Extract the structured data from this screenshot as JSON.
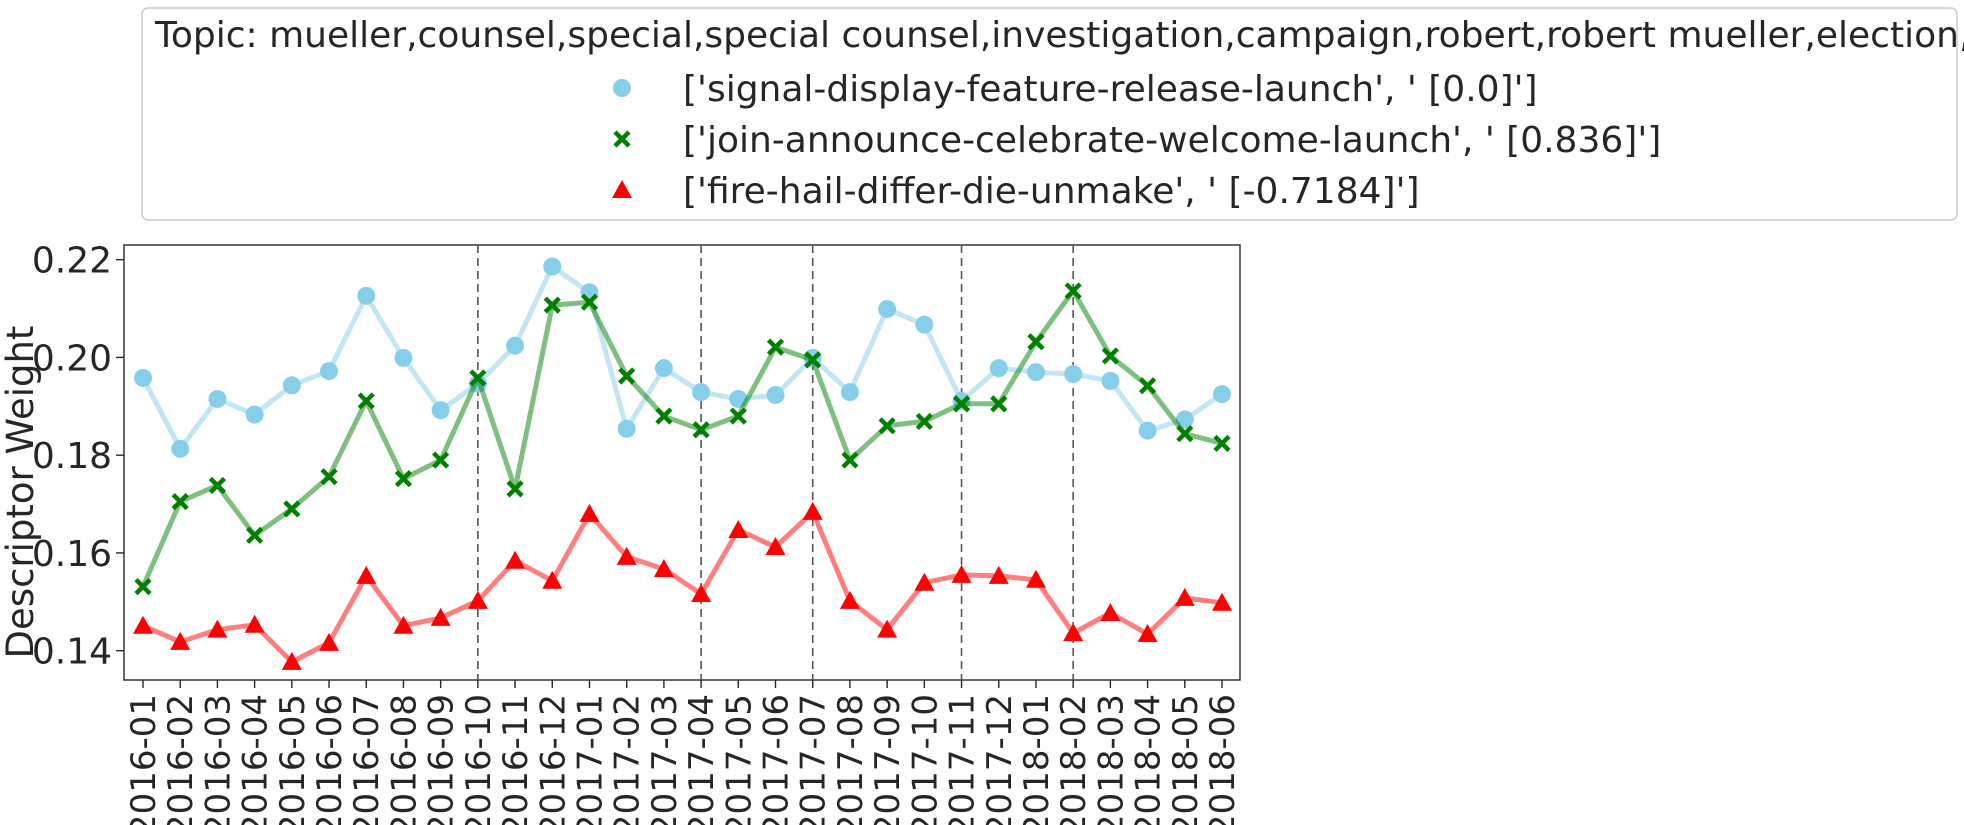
{
  "chart_data": {
    "type": "line",
    "legend": {
      "title": "Topic: mueller,counsel,special,special counsel,investigation,campaign,robert,robert mueller,election,probe",
      "placement": "top"
    },
    "ylabel": "Descriptor Weight",
    "xlabel": "",
    "ylim": [
      0.134,
      0.223
    ],
    "yticks": [
      0.14,
      0.16,
      0.18,
      0.2,
      0.22
    ],
    "ytick_labels": [
      "0.14",
      "0.16",
      "0.18",
      "0.20",
      "0.22"
    ],
    "categories": [
      "2016-01",
      "2016-02",
      "2016-03",
      "2016-04",
      "2016-05",
      "2016-06",
      "2016-07",
      "2016-08",
      "2016-09",
      "2016-10",
      "2016-11",
      "2016-12",
      "2017-01",
      "2017-02",
      "2017-03",
      "2017-04",
      "2017-05",
      "2017-06",
      "2017-07",
      "2017-08",
      "2017-09",
      "2017-10",
      "2017-11",
      "2017-12",
      "2018-01",
      "2018-02",
      "2018-03",
      "2018-04",
      "2018-05",
      "2018-06"
    ],
    "vlines": [
      "2016-10",
      "2017-04",
      "2017-07",
      "2017-11",
      "2018-02"
    ],
    "grid": false,
    "series": [
      {
        "name": "['signal-display-feature-release-launch', ' [0.0]']",
        "marker": "circle",
        "color": "#87ceeb",
        "values": [
          0.1958,
          0.1813,
          0.1915,
          0.1883,
          0.1943,
          0.1972,
          0.2126,
          0.1999,
          0.1892,
          0.1946,
          0.2024,
          0.2186,
          0.2133,
          0.1854,
          0.1978,
          0.1929,
          0.1915,
          0.1923,
          0.1999,
          0.1929,
          0.2099,
          0.2067,
          0.1911,
          0.1978,
          0.197,
          0.1966,
          0.1952,
          0.185,
          0.1873,
          0.1925
        ]
      },
      {
        "name": "['join-announce-celebrate-welcome-launch', ' [0.836]']",
        "marker": "x",
        "color": "#008000",
        "values": [
          0.1531,
          0.1705,
          0.1738,
          0.1636,
          0.169,
          0.1756,
          0.1911,
          0.1752,
          0.179,
          0.1958,
          0.1731,
          0.2107,
          0.2113,
          0.1962,
          0.188,
          0.1852,
          0.188,
          0.2021,
          0.1995,
          0.179,
          0.186,
          0.1869,
          0.1905,
          0.1905,
          0.2032,
          0.2136,
          0.2003,
          0.1942,
          0.1844,
          0.1824
        ]
      },
      {
        "name": "['fire-hail-differ-die-unmake', ' [-0.7184]']",
        "marker": "triangle",
        "color": "#ff0000",
        "values": [
          0.1451,
          0.1418,
          0.1443,
          0.1453,
          0.1377,
          0.1416,
          0.1553,
          0.1451,
          0.1467,
          0.1502,
          0.1584,
          0.1543,
          0.168,
          0.1592,
          0.1567,
          0.1516,
          0.1647,
          0.1612,
          0.1684,
          0.1502,
          0.1443,
          0.1539,
          0.1555,
          0.1553,
          0.1545,
          0.1436,
          0.1477,
          0.1434,
          0.1508,
          0.1498
        ]
      }
    ]
  }
}
